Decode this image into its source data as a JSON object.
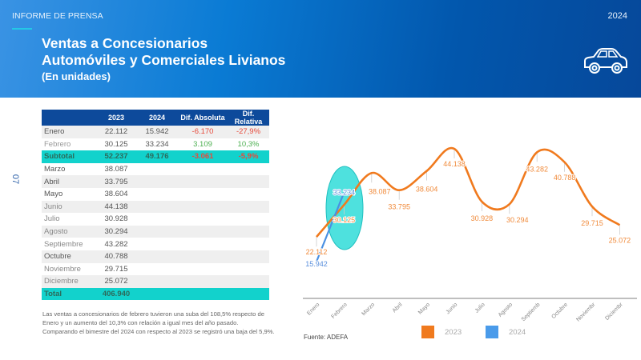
{
  "header": {
    "kicker": "INFORME DE PRENSA",
    "year": "2024",
    "title_line1": "Ventas a Concesionarios",
    "title_line2": "Automóviles y Comerciales Livianos",
    "subtitle": "(En unidades)",
    "icon": "car-icon"
  },
  "page_number": "07",
  "table": {
    "headers": [
      "",
      "2023",
      "2024",
      "Dif. Absoluta",
      "Dif. Relativa"
    ],
    "rows": [
      {
        "month": "Enero",
        "y2023": "22.112",
        "y2024": "15.942",
        "abs": "-6.170",
        "rel": "-27,9%"
      },
      {
        "month": "Febrero",
        "y2023": "30.125",
        "y2024": "33.234",
        "abs": "3.109",
        "rel": "10,3%"
      },
      {
        "month": "Subtotal",
        "y2023": "52.237",
        "y2024": "49.176",
        "abs": "-3.061",
        "rel": "-5,9%"
      },
      {
        "month": "Marzo",
        "y2023": "38.087"
      },
      {
        "month": "Abril",
        "y2023": "33.795"
      },
      {
        "month": "Mayo",
        "y2023": "38.604"
      },
      {
        "month": "Junio",
        "y2023": "44.138"
      },
      {
        "month": "Julio",
        "y2023": "30.928"
      },
      {
        "month": "Agosto",
        "y2023": "30.294"
      },
      {
        "month": "Septiembre",
        "y2023": "43.282"
      },
      {
        "month": "Octubre",
        "y2023": "40.788"
      },
      {
        "month": "Noviembre",
        "y2023": "29.715"
      },
      {
        "month": "Diciembre",
        "y2023": "25.072"
      },
      {
        "month": "Total",
        "y2023": "406.940"
      }
    ]
  },
  "note": "Las ventas a concesionarios de febrero tuvieron una suba del 108,5% respecto de Enero y un aumento del 10,3% con relación a igual mes del año pasado. Comparando el bimestre del 2024 con respecto al 2023 se registró una baja del 5,9%.",
  "source": "Fuente: ADEFA",
  "colors": {
    "series_2023": "#f07a1e",
    "series_2024": "#4a90e2",
    "highlight": "#12d2cc",
    "header_dark": "#0d4a9b",
    "negative": "#e64b3c",
    "positive": "#4caf50"
  },
  "chart_data": {
    "type": "line",
    "title": "",
    "xlabel": "",
    "ylabel": "",
    "categories": [
      "Enero",
      "Febrero",
      "Marzo",
      "Abril",
      "Mayo",
      "Junio",
      "Julio",
      "Agosto",
      "Septiemb",
      "Octubre",
      "Noviembr",
      "Diciembr"
    ],
    "series": [
      {
        "name": "2023",
        "color": "#f07a1e",
        "values": [
          22112,
          30125,
          38087,
          33795,
          38604,
          44138,
          30928,
          30294,
          43282,
          40788,
          29715,
          25072
        ],
        "labels": [
          "22.112",
          "30.125",
          "38.087",
          "33.795",
          "38.604",
          "44.138",
          "30.928",
          "30.294",
          "43.282",
          "40.788",
          "29.715",
          "25.072"
        ]
      },
      {
        "name": "2024",
        "color": "#4a90e2",
        "values": [
          15942,
          33234
        ],
        "labels": [
          "15.942",
          "33.234"
        ]
      }
    ],
    "legend": [
      "2023",
      "2024"
    ],
    "legend_position": "bottom",
    "grid": false,
    "annotations": [
      "highlight ellipse around Febrero"
    ]
  }
}
